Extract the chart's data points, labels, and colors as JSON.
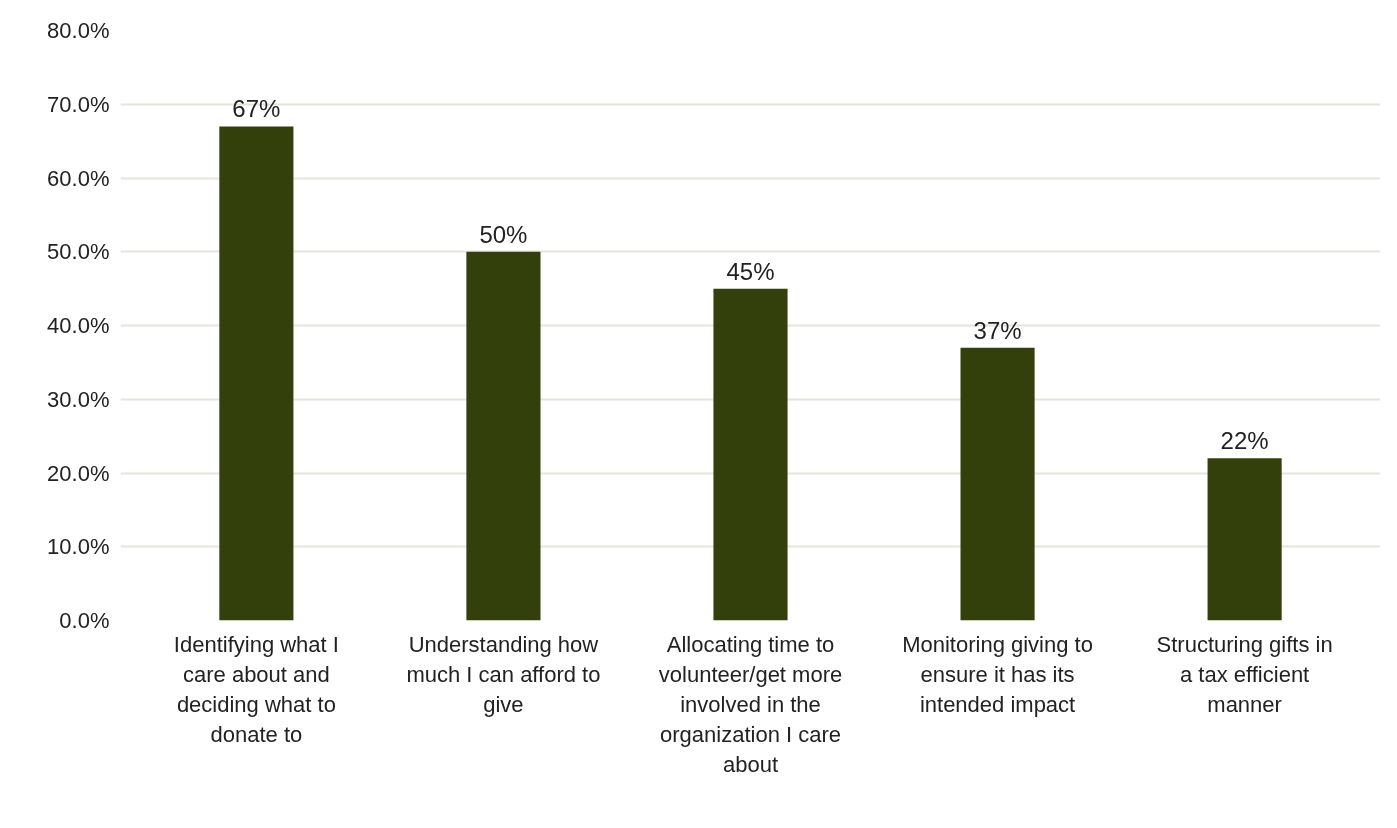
{
  "chart_data": {
    "type": "bar",
    "categories": [
      "Identifying what I care about and deciding what to donate to",
      "Understanding how much I can afford to give",
      "Allocating time to volunteer/get more involved in the organization I care about",
      "Monitoring giving to ensure it has its intended impact",
      "Structuring gifts in a tax efficient manner"
    ],
    "values": [
      67,
      50,
      45,
      37,
      22
    ],
    "value_labels": [
      "67%",
      "50%",
      "45%",
      "37%",
      "22%"
    ],
    "color": "#33400c",
    "ylim": [
      0,
      80
    ],
    "yticks": [
      {
        "value": 0,
        "label": "0.0%"
      },
      {
        "value": 10,
        "label": "10.0%"
      },
      {
        "value": 20,
        "label": "20.0%"
      },
      {
        "value": 30,
        "label": "30.0%"
      },
      {
        "value": 40,
        "label": "40.0%"
      },
      {
        "value": 50,
        "label": "50.0%"
      },
      {
        "value": 60,
        "label": "60.0%"
      },
      {
        "value": 70,
        "label": "70.0%"
      },
      {
        "value": 80,
        "label": "80.0%"
      }
    ],
    "grid": "y"
  }
}
